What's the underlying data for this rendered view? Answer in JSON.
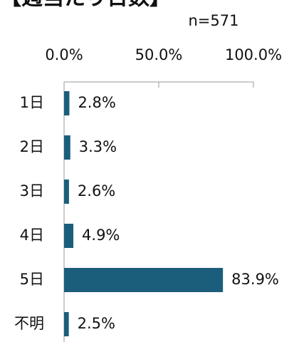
{
  "chart_data": {
    "type": "bar",
    "orientation": "horizontal",
    "title": "【週当たり日数】",
    "annotation": "n=571",
    "categories": [
      "1日",
      "2日",
      "3日",
      "4日",
      "5日",
      "不明"
    ],
    "values": [
      2.8,
      3.3,
      2.6,
      4.9,
      83.9,
      2.5
    ],
    "value_labels": [
      "2.8%",
      "3.3%",
      "2.6%",
      "4.9%",
      "83.9%",
      "2.5%"
    ],
    "color": "#1b5e7b",
    "xlim": [
      0,
      100
    ],
    "xticks": [
      {
        "value": 0,
        "label": "0.0%"
      },
      {
        "value": 50,
        "label": "50.0%"
      },
      {
        "value": 100,
        "label": "100.0%"
      }
    ]
  }
}
